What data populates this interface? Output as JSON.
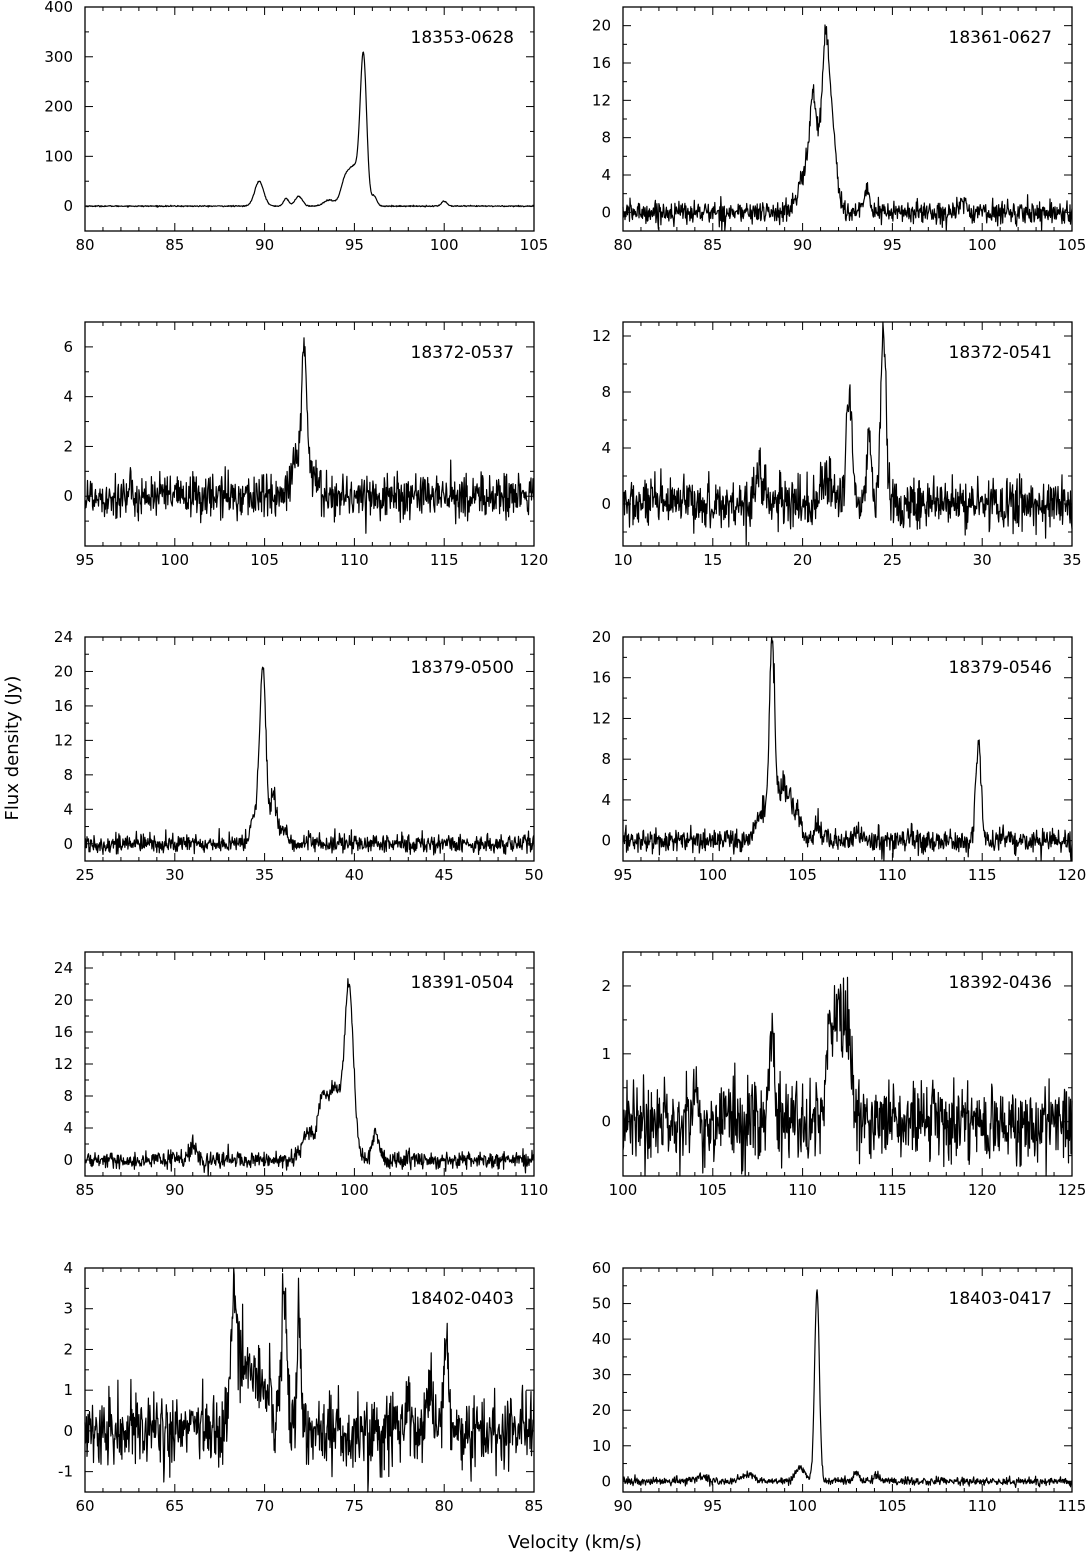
{
  "figure": {
    "xlabel": "Velocity  (km/s)",
    "ylabel": "Flux  density  (Jy)"
  },
  "chart_data": [
    {
      "type": "line",
      "title": "18353-0628",
      "xlim": [
        80,
        105
      ],
      "ylim": [
        -50,
        400
      ],
      "xticks": [
        80,
        85,
        90,
        95,
        100,
        105
      ],
      "yticks": [
        0,
        100,
        200,
        300,
        400
      ],
      "noise": 0.6,
      "peaks": [
        [
          89.7,
          50,
          0.25
        ],
        [
          91.2,
          15,
          0.15
        ],
        [
          91.9,
          20,
          0.2
        ],
        [
          93.6,
          12,
          0.3
        ],
        [
          94.5,
          55,
          0.25
        ],
        [
          95.0,
          70,
          0.25
        ],
        [
          95.5,
          300,
          0.18
        ],
        [
          96.1,
          20,
          0.15
        ],
        [
          100.0,
          10,
          0.15
        ]
      ]
    },
    {
      "type": "line",
      "title": "18361-0627",
      "xlim": [
        80,
        105
      ],
      "ylim": [
        -2,
        22
      ],
      "xticks": [
        80,
        85,
        90,
        95,
        100,
        105
      ],
      "yticks": [
        0,
        4,
        8,
        12,
        16,
        20
      ],
      "noise": 0.6,
      "peaks": [
        [
          90.1,
          4,
          0.35
        ],
        [
          90.6,
          11,
          0.2
        ],
        [
          91.3,
          19,
          0.25
        ],
        [
          91.8,
          5,
          0.2
        ],
        [
          93.6,
          2.5,
          0.15
        ],
        [
          99.0,
          1,
          0.2
        ]
      ]
    },
    {
      "type": "line",
      "title": "18372-0537",
      "xlim": [
        95,
        120
      ],
      "ylim": [
        -2,
        7
      ],
      "xticks": [
        95,
        100,
        105,
        110,
        115,
        120
      ],
      "yticks": [
        0,
        2,
        4,
        6
      ],
      "noise": 0.45,
      "peaks": [
        [
          106.7,
          1.5,
          0.2
        ],
        [
          107.2,
          5.8,
          0.15
        ],
        [
          107.8,
          0.8,
          0.3
        ]
      ]
    },
    {
      "type": "line",
      "title": "18372-0541",
      "xlim": [
        10,
        35
      ],
      "ylim": [
        -3,
        13
      ],
      "xticks": [
        10,
        15,
        20,
        25,
        30,
        35
      ],
      "yticks": [
        0,
        4,
        8,
        12
      ],
      "noise": 0.9,
      "peaks": [
        [
          17.6,
          2.0,
          0.3
        ],
        [
          22.6,
          7.5,
          0.18
        ],
        [
          23.7,
          5.5,
          0.12
        ],
        [
          24.5,
          12.3,
          0.15
        ],
        [
          21.3,
          1.5,
          0.3
        ]
      ]
    },
    {
      "type": "line",
      "title": "18379-0500",
      "xlim": [
        25,
        50
      ],
      "ylim": [
        -2,
        24
      ],
      "xticks": [
        25,
        30,
        35,
        40,
        45,
        50
      ],
      "yticks": [
        0,
        4,
        8,
        12,
        16,
        20,
        24
      ],
      "noise": 0.55,
      "peaks": [
        [
          34.4,
          3,
          0.2
        ],
        [
          34.9,
          20.5,
          0.18
        ],
        [
          35.5,
          5.5,
          0.15
        ],
        [
          36.0,
          1.5,
          0.3
        ]
      ]
    },
    {
      "type": "line",
      "title": "18379-0546",
      "xlim": [
        95,
        120
      ],
      "ylim": [
        -2,
        20
      ],
      "xticks": [
        95,
        100,
        105,
        110,
        115,
        120
      ],
      "yticks": [
        0,
        4,
        8,
        12,
        16,
        20
      ],
      "noise": 0.6,
      "peaks": [
        [
          102.8,
          3,
          0.3
        ],
        [
          103.3,
          17.5,
          0.15
        ],
        [
          103.9,
          5,
          0.35
        ],
        [
          104.6,
          2.5,
          0.3
        ],
        [
          105.9,
          1.5,
          0.25
        ],
        [
          108.0,
          1.5,
          0.15
        ],
        [
          114.8,
          9.5,
          0.15
        ]
      ]
    },
    {
      "type": "line",
      "title": "18391-0504",
      "xlim": [
        85,
        110
      ],
      "ylim": [
        -2,
        26
      ],
      "xticks": [
        85,
        90,
        95,
        100,
        105,
        110
      ],
      "yticks": [
        0,
        4,
        8,
        12,
        16,
        20,
        24
      ],
      "noise": 0.5,
      "peaks": [
        [
          91.0,
          1.5,
          0.2
        ],
        [
          97.4,
          3.5,
          0.3
        ],
        [
          98.2,
          7,
          0.25
        ],
        [
          98.9,
          9,
          0.35
        ],
        [
          99.7,
          21.5,
          0.25
        ],
        [
          101.2,
          3.5,
          0.2
        ]
      ]
    },
    {
      "type": "line",
      "title": "18392-0436",
      "xlim": [
        100,
        125
      ],
      "ylim": [
        -0.8,
        2.5
      ],
      "xticks": [
        100,
        105,
        110,
        115,
        120,
        125
      ],
      "yticks": [
        0,
        1,
        2
      ],
      "noise": 0.3,
      "peaks": [
        [
          108.3,
          1.3,
          0.15
        ],
        [
          111.5,
          1.4,
          0.2
        ],
        [
          112.0,
          1.6,
          0.2
        ],
        [
          112.5,
          1.3,
          0.2
        ],
        [
          104.0,
          0.6,
          0.12
        ]
      ]
    },
    {
      "type": "line",
      "title": "18402-0403",
      "xlim": [
        60,
        85
      ],
      "ylim": [
        -1.5,
        4
      ],
      "xticks": [
        60,
        65,
        70,
        75,
        80,
        85
      ],
      "yticks": [
        -1,
        0,
        1,
        2,
        3,
        4
      ],
      "noise": 0.45,
      "peaks": [
        [
          68.3,
          2.8,
          0.2
        ],
        [
          69.0,
          1.5,
          0.45
        ],
        [
          70.0,
          1.0,
          0.5
        ],
        [
          71.1,
          3.2,
          0.15
        ],
        [
          71.9,
          3.0,
          0.1
        ],
        [
          78.0,
          1.0,
          0.15
        ],
        [
          79.2,
          1.0,
          0.15
        ],
        [
          80.1,
          2.4,
          0.12
        ]
      ]
    },
    {
      "type": "line",
      "title": "18403-0417",
      "xlim": [
        90,
        115
      ],
      "ylim": [
        -3,
        60
      ],
      "xticks": [
        90,
        95,
        100,
        105,
        110,
        115
      ],
      "yticks": [
        0,
        10,
        20,
        30,
        40,
        50,
        60
      ],
      "noise": 0.55,
      "peaks": [
        [
          94.2,
          1.2,
          0.4
        ],
        [
          96.9,
          1.8,
          0.4
        ],
        [
          99.9,
          3.5,
          0.3
        ],
        [
          100.8,
          54,
          0.13
        ],
        [
          103.0,
          2.5,
          0.15
        ],
        [
          104.1,
          1.5,
          0.15
        ]
      ]
    }
  ]
}
